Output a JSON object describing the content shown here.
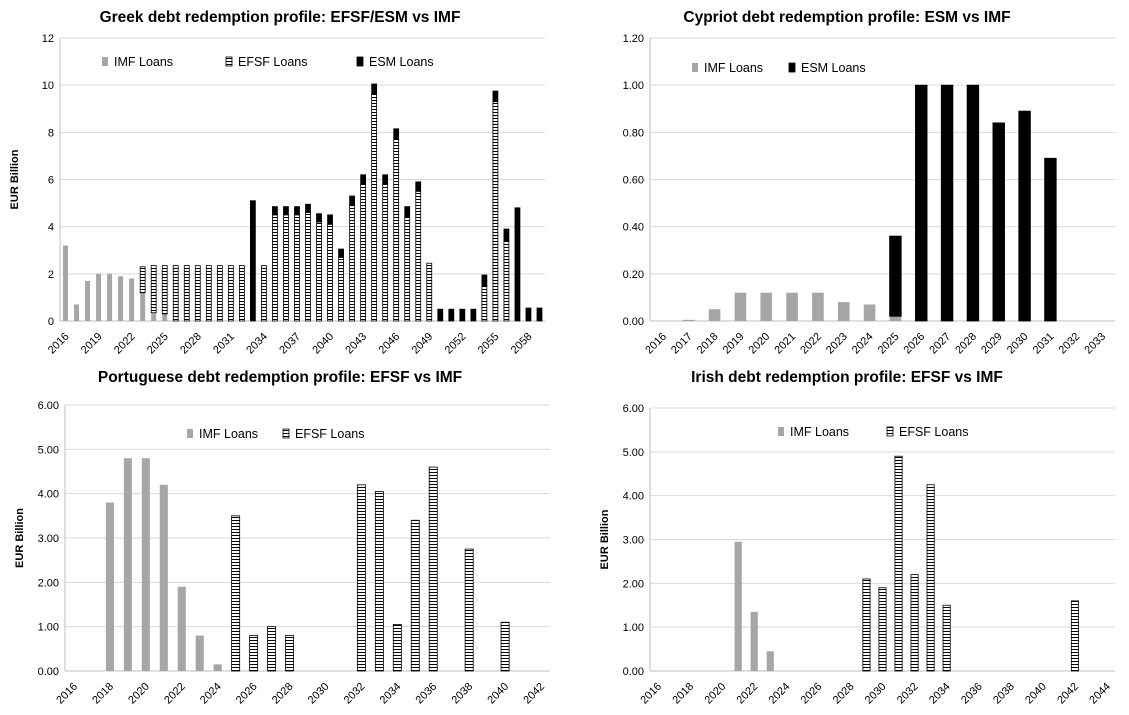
{
  "colors": {
    "imf": "#a6a6a6",
    "esm": "#000000",
    "efsf_fill": "#ffffff",
    "efsf_hatch": "#000000",
    "axis": "#bfbfbf",
    "grid": "#d9d9d9"
  },
  "chart_data": [
    {
      "type": "bar",
      "title": "Greek debt redemption profile: EFSF/ESM vs IMF",
      "ylabel": "EUR Billion",
      "xlabel": "",
      "ylim": [
        0,
        12
      ],
      "yticks": [
        "0",
        "2",
        "4",
        "6",
        "8",
        "10",
        "12"
      ],
      "ytick_values": [
        0,
        2,
        4,
        6,
        8,
        10,
        12
      ],
      "grid": true,
      "legend": "top",
      "x_start": 2016,
      "x_end": 2059,
      "x_label_every": 3,
      "bar_mode": "stacked",
      "series": [
        {
          "name": "IMF Loans",
          "style": "imf",
          "values": [
            3.2,
            0.7,
            1.7,
            2.0,
            2.0,
            1.9,
            1.8,
            1.2,
            0.35,
            0.3,
            0.0,
            0.0,
            0.0,
            0.0,
            0.0,
            0.0,
            0.0,
            0.0,
            0.0,
            0.0,
            0.0,
            0.0,
            0.0,
            0.0,
            0.0,
            0.0,
            0.0,
            0.0,
            0.0,
            0.0,
            0.0,
            0.0,
            0.0,
            0.0,
            0.0,
            0.0,
            0.0,
            0.0,
            0.0,
            0.0,
            0.0,
            0.0,
            0.0,
            0.0
          ]
        },
        {
          "name": "EFSF Loans",
          "style": "efsf",
          "values": [
            0.0,
            0.0,
            0.0,
            0.0,
            0.0,
            0.0,
            0.0,
            1.1,
            2.0,
            2.05,
            2.35,
            2.35,
            2.35,
            2.35,
            2.35,
            2.35,
            2.35,
            0.0,
            2.35,
            4.5,
            4.5,
            4.5,
            4.6,
            4.2,
            4.1,
            2.7,
            4.9,
            5.8,
            9.6,
            5.8,
            7.7,
            4.4,
            5.5,
            2.45,
            0.0,
            0.0,
            0.0,
            0.0,
            1.5,
            9.3,
            3.4,
            0.0,
            0.0,
            0.0
          ]
        },
        {
          "name": "ESM Loans",
          "style": "esm",
          "values": [
            0.0,
            0.0,
            0.0,
            0.0,
            0.0,
            0.0,
            0.0,
            0.0,
            0.0,
            0.0,
            0.0,
            0.0,
            0.0,
            0.0,
            0.0,
            0.0,
            0.0,
            5.1,
            0.0,
            0.35,
            0.35,
            0.35,
            0.35,
            0.35,
            0.4,
            0.35,
            0.4,
            0.4,
            0.45,
            0.4,
            0.45,
            0.45,
            0.4,
            0.0,
            0.5,
            0.5,
            0.5,
            0.5,
            0.45,
            0.45,
            0.5,
            4.8,
            0.55,
            0.55
          ]
        }
      ],
      "categories": [
        "2016",
        "2017",
        "2018",
        "2019",
        "2020",
        "2021",
        "2022",
        "2023",
        "2024",
        "2025",
        "2026",
        "2027",
        "2028",
        "2029",
        "2030",
        "2031",
        "2032",
        "2033",
        "2034",
        "2035",
        "2036",
        "2037",
        "2038",
        "2039",
        "2040",
        "2041",
        "2042",
        "2043",
        "2044",
        "2045",
        "2046",
        "2047",
        "2048",
        "2049",
        "2050",
        "2051",
        "2052",
        "2053",
        "2054",
        "2055",
        "2056",
        "2057",
        "2058",
        "2059"
      ]
    },
    {
      "type": "bar",
      "title": "Cypriot debt redemption profile: ESM vs IMF",
      "ylabel": "",
      "xlabel": "",
      "ylim": [
        0,
        1.2
      ],
      "yticks": [
        "0.00",
        "0.20",
        "0.40",
        "0.60",
        "0.80",
        "1.00",
        "1.20"
      ],
      "ytick_values": [
        0,
        0.2,
        0.4,
        0.6,
        0.8,
        1.0,
        1.2
      ],
      "grid": true,
      "legend": "top-left",
      "x_start": 2016,
      "x_end": 2033,
      "x_label_every": 1,
      "bar_mode": "stacked",
      "series": [
        {
          "name": "IMF Loans",
          "style": "imf",
          "values": [
            0.0,
            0.005,
            0.05,
            0.12,
            0.12,
            0.12,
            0.12,
            0.08,
            0.07,
            0.02,
            0.0,
            0.0,
            0.0,
            0.0,
            0.0,
            0.0,
            0.0,
            0.0
          ]
        },
        {
          "name": "ESM Loans",
          "style": "esm",
          "values": [
            0.0,
            0.0,
            0.0,
            0.0,
            0.0,
            0.0,
            0.0,
            0.0,
            0.0,
            0.34,
            1.0,
            1.0,
            1.0,
            0.84,
            0.89,
            0.69,
            0.0,
            0.0
          ]
        }
      ],
      "categories": [
        "2016",
        "2017",
        "2018",
        "2019",
        "2020",
        "2021",
        "2022",
        "2023",
        "2024",
        "2025",
        "2026",
        "2027",
        "2028",
        "2029",
        "2030",
        "2031",
        "2032",
        "2033"
      ]
    },
    {
      "type": "bar",
      "title": "Portuguese debt redemption profile: EFSF vs IMF",
      "ylabel": "EUR Billion",
      "xlabel": "",
      "ylim": [
        0,
        6
      ],
      "yticks": [
        "0.00",
        "1.00",
        "2.00",
        "3.00",
        "4.00",
        "5.00",
        "6.00"
      ],
      "ytick_values": [
        0,
        1,
        2,
        3,
        4,
        5,
        6
      ],
      "grid": true,
      "legend": "top-center",
      "x_start": 2016,
      "x_end": 2042,
      "x_label_every": 2,
      "bar_mode": "stacked",
      "series": [
        {
          "name": "IMF Loans",
          "style": "imf",
          "values": [
            0.0,
            0.0,
            3.8,
            4.8,
            4.8,
            4.2,
            1.9,
            0.8,
            0.15,
            0.0,
            0.0,
            0.0,
            0.0,
            0.0,
            0.0,
            0.0,
            0.0,
            0.0,
            0.0,
            0.0,
            0.0,
            0.0,
            0.0,
            0.0,
            0.0,
            0.0,
            0.0
          ]
        },
        {
          "name": "EFSF Loans",
          "style": "efsf",
          "values": [
            0.0,
            0.0,
            0.0,
            0.0,
            0.0,
            0.0,
            0.0,
            0.0,
            0.0,
            3.5,
            0.8,
            1.0,
            0.8,
            0.0,
            0.0,
            0.0,
            4.2,
            4.05,
            1.05,
            3.4,
            4.6,
            0.0,
            2.75,
            0.0,
            1.1,
            0.0,
            0.0
          ]
        }
      ],
      "categories": [
        "2016",
        "2017",
        "2018",
        "2019",
        "2020",
        "2021",
        "2022",
        "2023",
        "2024",
        "2025",
        "2026",
        "2027",
        "2028",
        "2029",
        "2030",
        "2031",
        "2032",
        "2033",
        "2034",
        "2035",
        "2036",
        "2037",
        "2038",
        "2039",
        "2040",
        "2041",
        "2042"
      ]
    },
    {
      "type": "bar",
      "title": "Irish debt redemption profile: EFSF vs IMF",
      "ylabel": "EUR Billion",
      "xlabel": "",
      "ylim": [
        0,
        6
      ],
      "yticks": [
        "0.00",
        "1.00",
        "2.00",
        "3.00",
        "4.00",
        "5.00",
        "6.00"
      ],
      "ytick_values": [
        0,
        1,
        2,
        3,
        4,
        5,
        6
      ],
      "grid": true,
      "legend": "top-center",
      "x_start": 2016,
      "x_end": 2044,
      "x_label_every": 2,
      "bar_mode": "stacked",
      "series": [
        {
          "name": "IMF Loans",
          "style": "imf",
          "values": [
            0.0,
            0.0,
            0.0,
            0.0,
            0.0,
            2.95,
            1.35,
            0.45,
            0.0,
            0.0,
            0.0,
            0.0,
            0.0,
            0.0,
            0.0,
            0.0,
            0.0,
            0.0,
            0.0,
            0.0,
            0.0,
            0.0,
            0.0,
            0.0,
            0.0,
            0.0,
            0.0,
            0.0,
            0.0
          ]
        },
        {
          "name": "EFSF Loans",
          "style": "efsf",
          "values": [
            0.0,
            0.0,
            0.0,
            0.0,
            0.0,
            0.0,
            0.0,
            0.0,
            0.0,
            0.0,
            0.0,
            0.0,
            0.0,
            2.1,
            1.9,
            4.9,
            2.2,
            4.25,
            1.5,
            0.0,
            0.0,
            0.0,
            0.0,
            0.0,
            0.0,
            0.0,
            1.6,
            0.0,
            0.0
          ]
        }
      ],
      "categories": [
        "2016",
        "2017",
        "2018",
        "2019",
        "2020",
        "2021",
        "2022",
        "2023",
        "2024",
        "2025",
        "2026",
        "2027",
        "2028",
        "2029",
        "2030",
        "2031",
        "2032",
        "2033",
        "2034",
        "2035",
        "2036",
        "2037",
        "2038",
        "2039",
        "2040",
        "2041",
        "2042",
        "2043",
        "2044"
      ]
    }
  ]
}
